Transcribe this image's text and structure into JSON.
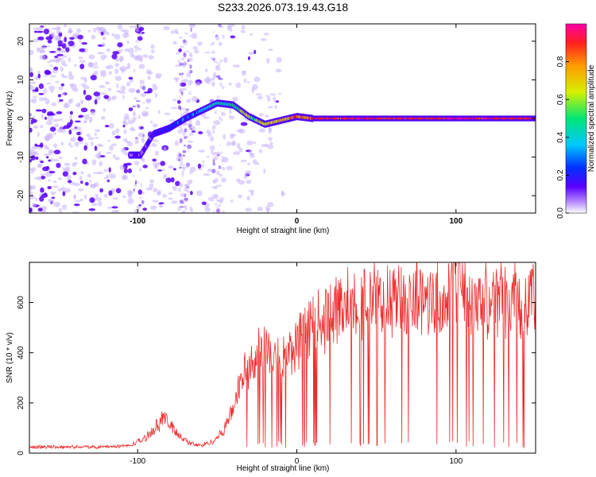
{
  "title": "S233.2026.073.19.43.G18",
  "colors": {
    "line": "#ee2b2b",
    "axis": "#000000",
    "colormap": [
      "#ffffff",
      "#b388ff",
      "#5a00ff",
      "#0030ff",
      "#00c8ff",
      "#00e676",
      "#d6f000",
      "#ff9a00",
      "#ff1f1f",
      "#ff00aa"
    ]
  },
  "chart_data": [
    {
      "type": "heatmap",
      "name": "spectrogram",
      "xlabel": "Height of straight line (km)",
      "ylabel": "Frequency (Hz)",
      "xlim": [
        -168,
        150
      ],
      "ylim": [
        -24.5,
        24.5
      ],
      "xticks": [
        -100,
        0,
        100
      ],
      "yticks": [
        -20,
        -10,
        0,
        10,
        20
      ],
      "ridge": [
        {
          "x": -98,
          "y": -9.5
        },
        {
          "x": -90,
          "y": -4
        },
        {
          "x": -80,
          "y": -2.5
        },
        {
          "x": -70,
          "y": 0
        },
        {
          "x": -60,
          "y": 2
        },
        {
          "x": -50,
          "y": 4
        },
        {
          "x": -40,
          "y": 3.5
        },
        {
          "x": -30,
          "y": 0.5
        },
        {
          "x": -20,
          "y": -1.5
        },
        {
          "x": -10,
          "y": -0.5
        },
        {
          "x": 0,
          "y": 0.5
        },
        {
          "x": 10,
          "y": 0
        },
        {
          "x": 150,
          "y": 0
        }
      ],
      "colorbar": {
        "label": "Normalized spectral amplitude",
        "range": [
          0,
          1
        ],
        "ticks": [
          0.0,
          0.2,
          0.4,
          0.6,
          0.8
        ]
      }
    },
    {
      "type": "line",
      "name": "snr",
      "xlabel": "Height of straight line (km)",
      "ylabel": "SNR (10 * v/v)",
      "xlim": [
        -168,
        150
      ],
      "ylim": [
        0,
        760
      ],
      "xticks": [
        -100,
        0,
        100
      ],
      "yticks": [
        0,
        200,
        400,
        600
      ],
      "envelope": {
        "x": [
          -168,
          -120,
          -105,
          -95,
          -88,
          -84,
          -80,
          -75,
          -68,
          -60,
          -52,
          -46,
          -40,
          -36,
          -30,
          -24,
          -18,
          -12,
          -6,
          0,
          6,
          12,
          18,
          24,
          30,
          40,
          50,
          60,
          70,
          80,
          90,
          95,
          100,
          103,
          110,
          120,
          130,
          140,
          150
        ],
        "y": [
          25,
          25,
          30,
          60,
          110,
          140,
          115,
          80,
          40,
          30,
          50,
          90,
          180,
          280,
          360,
          400,
          410,
          380,
          390,
          420,
          480,
          520,
          540,
          570,
          600,
          620,
          610,
          605,
          610,
          620,
          620,
          625,
          700,
          640,
          620,
          615,
          615,
          620,
          620
        ]
      }
    }
  ]
}
